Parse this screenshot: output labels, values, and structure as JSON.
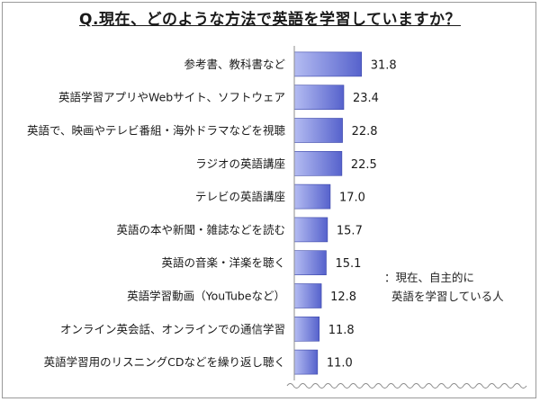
{
  "chart_data": {
    "type": "bar",
    "orientation": "horizontal",
    "title": "Q.現在、どのような方法で英語を学習していますか？",
    "categories": [
      "参考書、教科書など",
      "英語学習アプリやWebサイト、ソフトウェア",
      "英語で、映画やテレビ番組・海外ドラマなどを視聴",
      "ラジオの英語講座",
      "テレビの英語講座",
      "英語の本や新聞・雑誌などを読む",
      "英語の音楽・洋楽を聴く",
      "英語学習動画（YouTubeなど）",
      "オンライン英会話、オンラインでの通信学習",
      "英語学習用のリスニングCDなどを繰り返し聴く"
    ],
    "values": [
      31.8,
      23.4,
      22.8,
      22.5,
      17.0,
      15.7,
      15.1,
      12.8,
      11.8,
      11.0
    ],
    "value_labels": [
      "31.8",
      "23.4",
      "22.8",
      "22.5",
      "17.0",
      "15.7",
      "15.1",
      "12.8",
      "11.8",
      "11.0"
    ],
    "xlim": [
      0,
      35
    ],
    "grid": false,
    "axis_break": true,
    "note_lines": [
      "：現在、自主的に",
      "英語を学習している人"
    ],
    "colors": {
      "bar_light": "#b4bcf2",
      "bar_dark": "#5662cc",
      "bar_edge": "#3b46a8",
      "axis": "#8c8c8c",
      "text": "#1a1a1a"
    }
  }
}
